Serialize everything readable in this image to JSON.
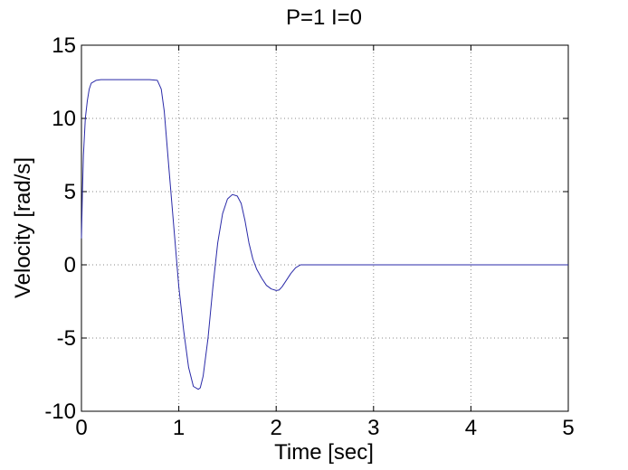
{
  "chart_data": {
    "type": "line",
    "title": "P=1 I=0",
    "xlabel": "Time [sec]",
    "ylabel": "Velocity [rad/s]",
    "xlim": [
      0,
      5
    ],
    "ylim": [
      -10,
      15
    ],
    "xticks": [
      0,
      1,
      2,
      3,
      4,
      5
    ],
    "yticks": [
      -10,
      -5,
      0,
      5,
      10,
      15
    ],
    "xtick_labels": [
      "0",
      "1",
      "2",
      "3",
      "4",
      "5"
    ],
    "ytick_labels": [
      "-10",
      "-5",
      "0",
      "5",
      "10",
      "15"
    ],
    "grid": true,
    "line_color": "#2a2aa8",
    "series": [
      {
        "x": [
          0,
          0.01,
          0.02,
          0.04,
          0.06,
          0.08,
          0.1,
          0.15,
          0.2,
          0.3,
          0.5,
          0.7,
          0.78,
          0.82,
          0.85,
          0.9,
          0.95,
          1.0,
          1.05,
          1.1,
          1.15,
          1.2,
          1.22,
          1.25,
          1.3,
          1.35,
          1.4,
          1.45,
          1.5,
          1.55,
          1.6,
          1.64,
          1.68,
          1.72,
          1.76,
          1.8,
          1.85,
          1.9,
          1.95,
          2.0,
          2.03,
          2.06,
          2.1,
          2.15,
          2.2,
          2.25,
          2.3,
          3.0,
          4.0,
          5.0
        ],
        "y": [
          1.8,
          5.0,
          7.5,
          10.0,
          11.2,
          12.0,
          12.4,
          12.6,
          12.65,
          12.65,
          12.65,
          12.65,
          12.6,
          12.0,
          10.5,
          6.5,
          2.5,
          -1.5,
          -4.5,
          -7.0,
          -8.3,
          -8.5,
          -8.4,
          -7.6,
          -5.0,
          -1.5,
          1.5,
          3.5,
          4.5,
          4.8,
          4.7,
          4.2,
          3.0,
          1.5,
          0.4,
          -0.3,
          -0.9,
          -1.4,
          -1.65,
          -1.75,
          -1.72,
          -1.5,
          -1.1,
          -0.6,
          -0.2,
          0.0,
          0.0,
          0.0,
          0.0,
          0.0
        ]
      }
    ]
  }
}
